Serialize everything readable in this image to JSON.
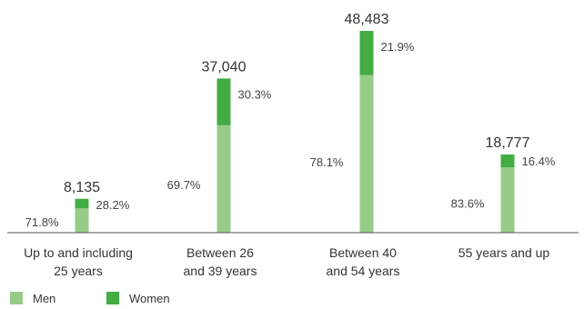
{
  "chart_data": {
    "type": "bar",
    "stacked": true,
    "categories": [
      [
        "Up to and including",
        "25 years"
      ],
      [
        "Between 26",
        "and 39 years"
      ],
      [
        "Between 40",
        "and 54 years"
      ],
      [
        "55 years and up"
      ]
    ],
    "totals": [
      8135,
      37040,
      48483,
      18777
    ],
    "total_labels": [
      "8,135",
      "37,040",
      "48,483",
      "18,777"
    ],
    "series": [
      {
        "name": "Men",
        "color": "#96cc87",
        "values_pct": [
          71.8,
          69.7,
          78.1,
          83.6
        ],
        "labels": [
          "71.8%",
          "69.7%",
          "78.1%",
          "83.6%"
        ]
      },
      {
        "name": "Women",
        "color": "#43ac43",
        "values_pct": [
          28.2,
          30.3,
          21.9,
          16.4
        ],
        "labels": [
          "28.2%",
          "30.3%",
          "21.9%",
          "16.4%"
        ]
      }
    ],
    "ylim": [
      0,
      48483
    ],
    "axis_color": "#555555",
    "legend_position": "bottom-left"
  }
}
